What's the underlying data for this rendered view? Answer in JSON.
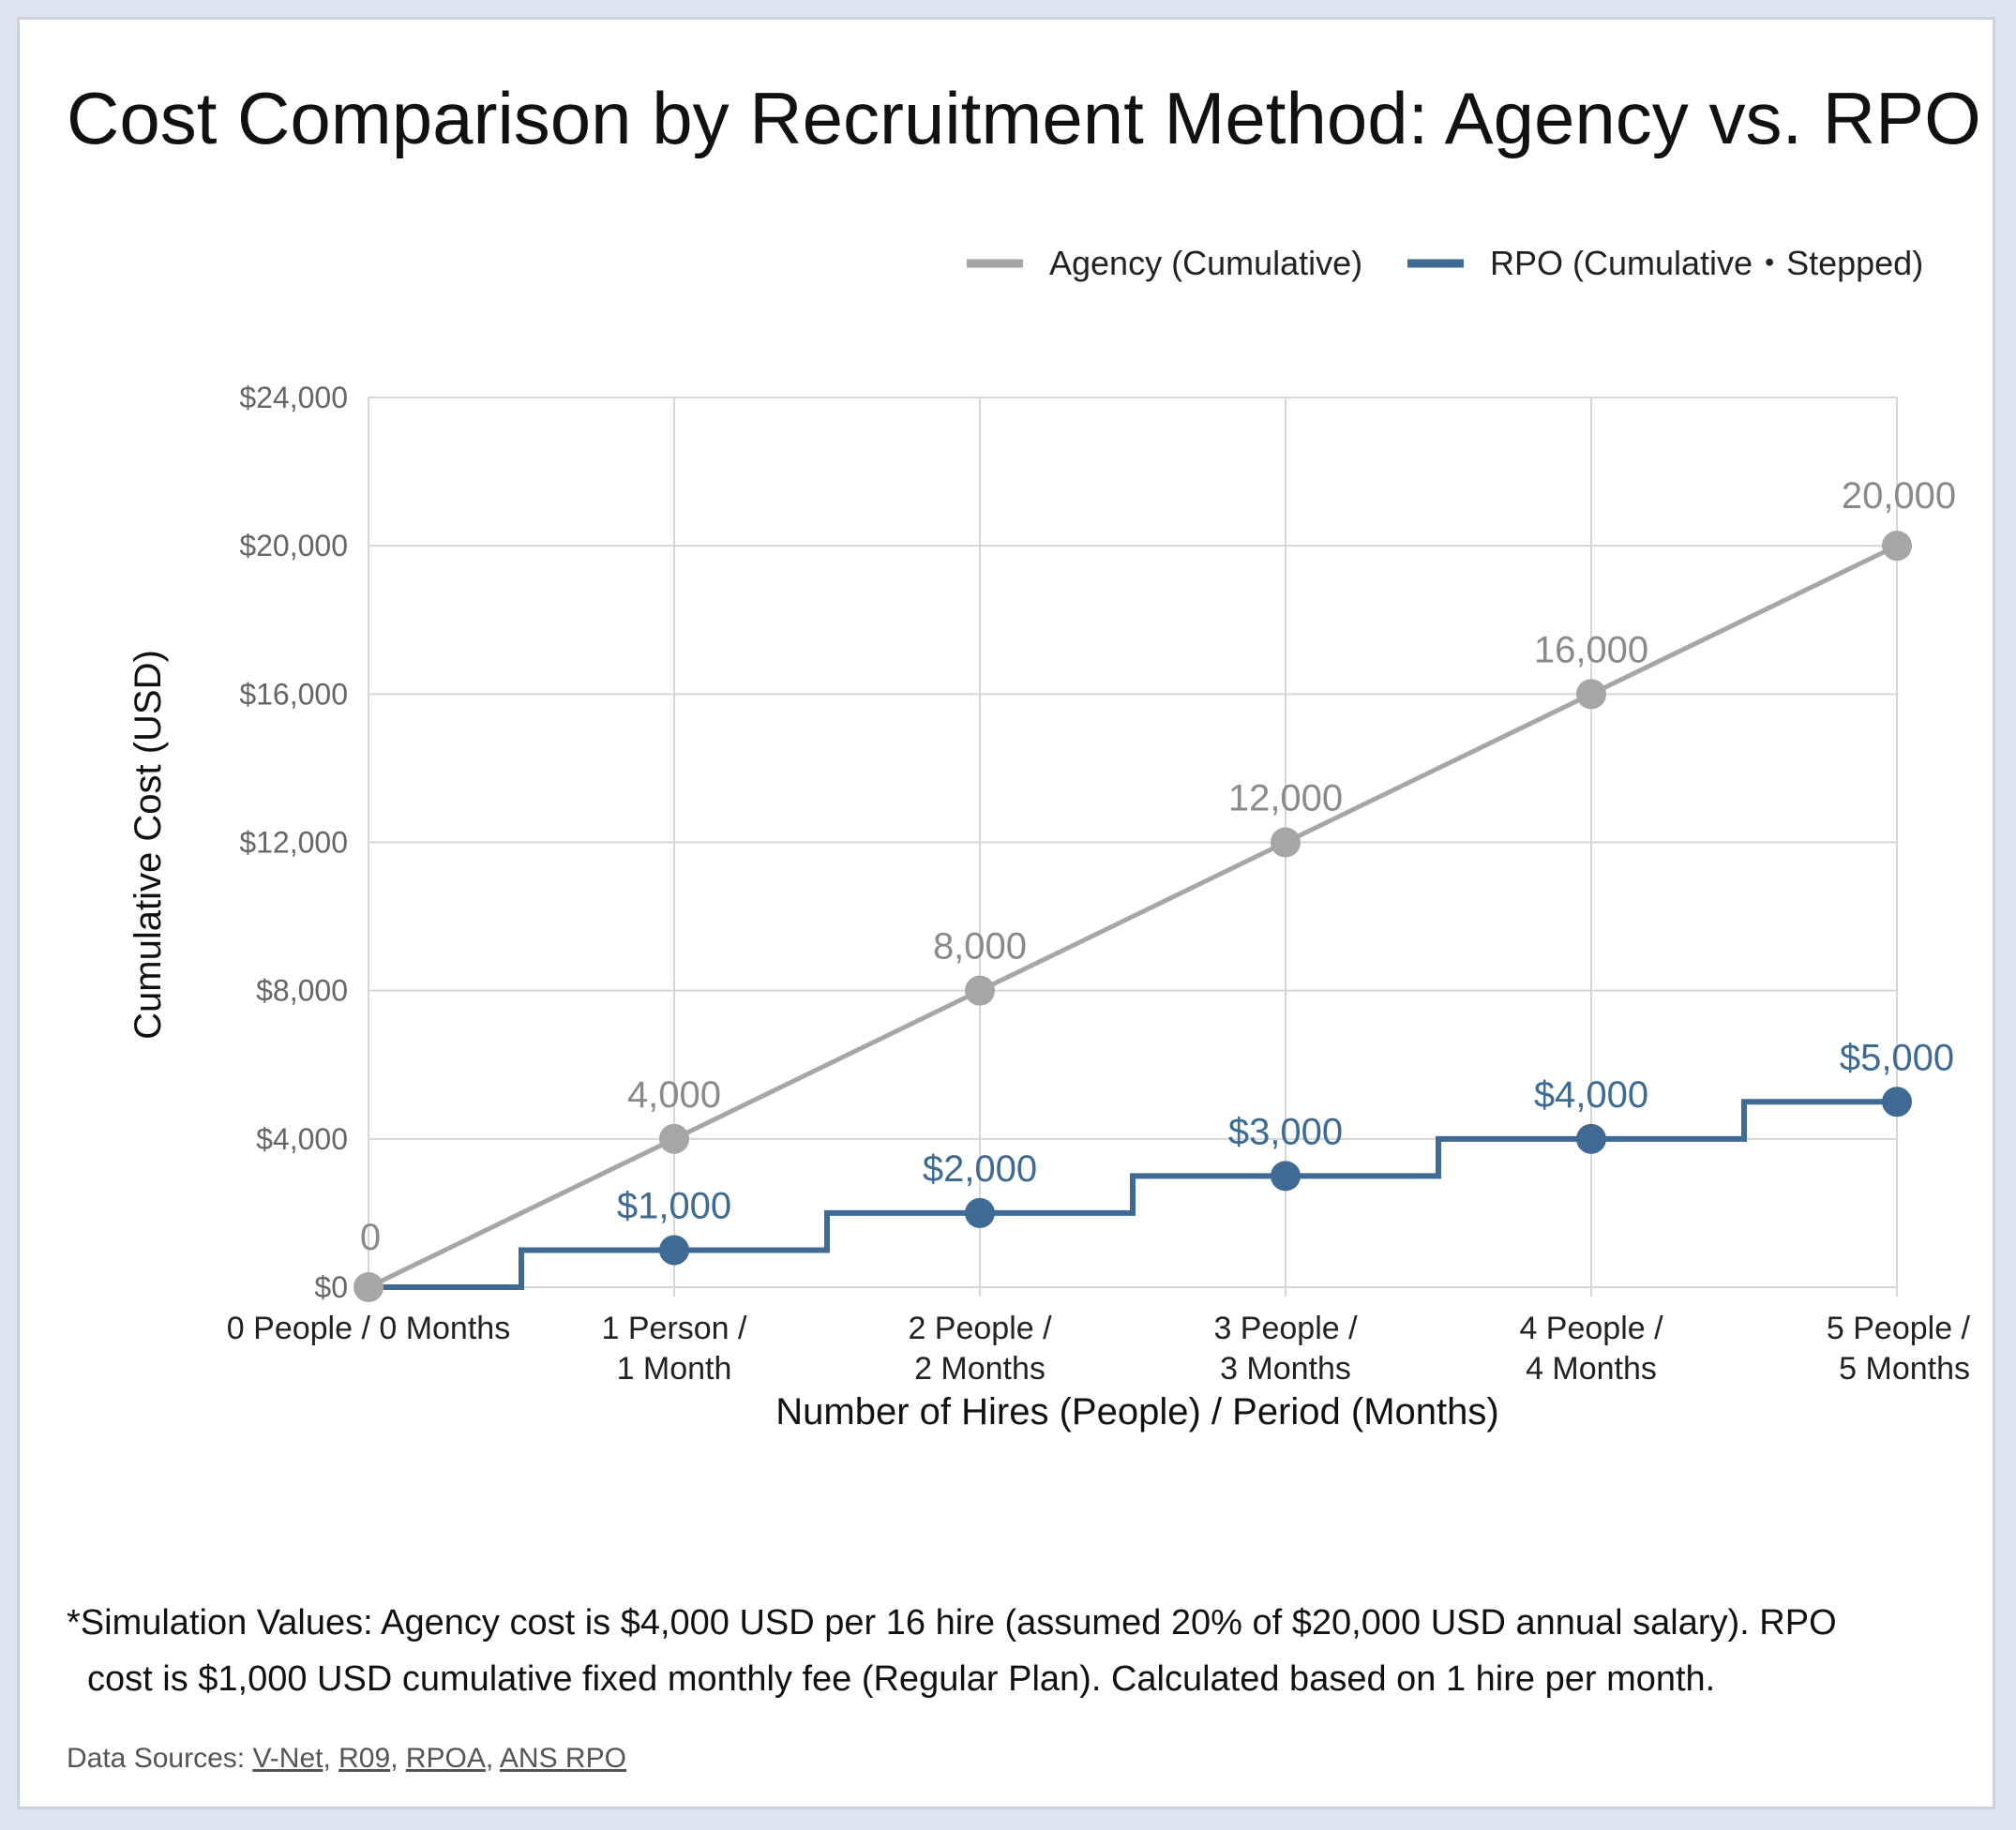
{
  "title": "Cost Comparison by Recruitment Method: Agency vs. RPO",
  "chart_data": {
    "type": "line",
    "categories": [
      [
        "0 People / 0 Months"
      ],
      [
        "1 Person /",
        "1 Month"
      ],
      [
        "2 People /",
        "2 Months"
      ],
      [
        "3 People /",
        "3 Months"
      ],
      [
        "4 People /",
        "4 Months"
      ],
      [
        "5 People /",
        "5 Months"
      ]
    ],
    "x": [
      0,
      1,
      2,
      3,
      4,
      5
    ],
    "series": [
      {
        "name": "Agency (Cumulative)",
        "values": [
          0,
          4000,
          8000,
          12000,
          16000,
          20000
        ],
        "labels": [
          "0",
          "4,000",
          "8,000",
          "12,000",
          "16,000",
          "20,000"
        ],
        "color": "#a6a6a6",
        "line_style": "straight"
      },
      {
        "name": "RPO (Cumulative・Stepped)",
        "values": [
          0,
          1000,
          2000,
          3000,
          4000,
          5000
        ],
        "labels": [
          "",
          "$1,000",
          "$2,000",
          "$3,000",
          "$4,000",
          "$5,000"
        ],
        "color": "#3e6a94",
        "line_style": "step-middle"
      }
    ],
    "xlabel": "Number of Hires (People) / Period (Months)",
    "ylabel": "Cumulative Cost (USD)",
    "ylim": [
      0,
      24000
    ],
    "yticks": [
      0,
      4000,
      8000,
      12000,
      16000,
      20000,
      24000
    ],
    "ytick_labels": [
      "$0",
      "$4,000",
      "$8,000",
      "$12,000",
      "$16,000",
      "$20,000",
      "$24,000"
    ],
    "grid": true,
    "legend_position": "top-right"
  },
  "footnote": {
    "line1": "*Simulation Values: Agency cost is $4,000 USD per 16 hire (assumed 20% of $20,000 USD annual salary). RPO",
    "line2": "cost is $1,000 USD cumulative fixed monthly fee (Regular Plan). Calculated based on 1 hire per month."
  },
  "sources": {
    "label": "Data Sources:",
    "items": [
      "V-Net",
      "R09",
      "RPOA",
      "ANS RPO"
    ]
  }
}
